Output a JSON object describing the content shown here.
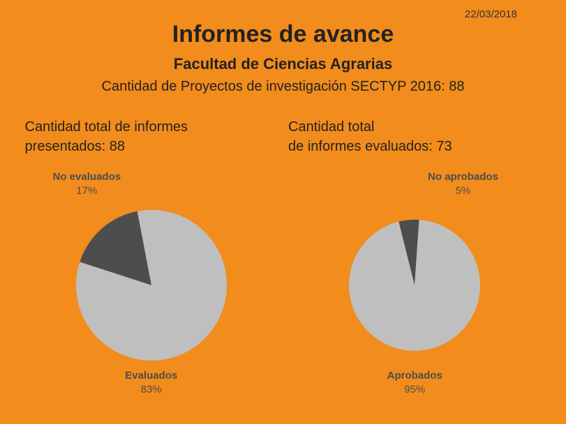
{
  "background_color": "#f28c1c",
  "date": "22/03/2018",
  "title": "Informes de avance",
  "subtitle": "Facultad de Ciencias Agrarias",
  "subtext": "Cantidad de Proyectos de investigación SECTYP 2016: 88",
  "label_text_color": "#4d4d4d",
  "left": {
    "header_line1": "Cantidad total de informes",
    "header_line2": "presentados: 88",
    "radius": 108,
    "slices": [
      {
        "name": "No evaluados",
        "pct": 17,
        "color": "#4d4d4d",
        "label_pos": "top-left"
      },
      {
        "name": "Evaluados",
        "pct": 83,
        "color": "#bfbfbf",
        "label_pos": "bottom"
      }
    ]
  },
  "right": {
    "header_line1": "Cantidad total",
    "header_line2": "de informes evaluados: 73",
    "radius": 94,
    "slices": [
      {
        "name": "No aprobados",
        "pct": 5,
        "color": "#4d4d4d",
        "label_pos": "top-right"
      },
      {
        "name": "Aprobados",
        "pct": 95,
        "color": "#bfbfbf",
        "label_pos": "bottom"
      }
    ]
  }
}
